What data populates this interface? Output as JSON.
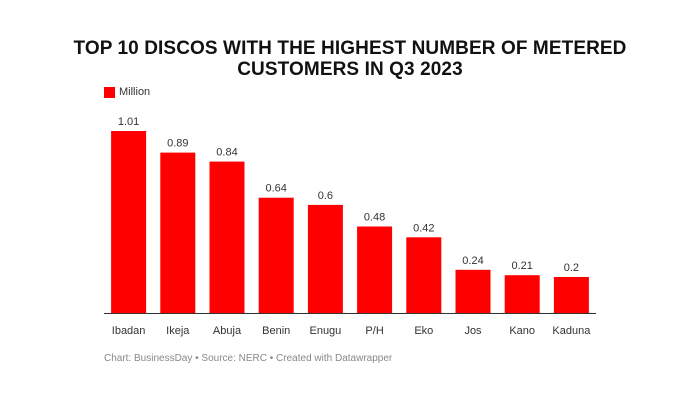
{
  "chart_data": {
    "type": "bar",
    "title_line1": "TOP 10 DISCOS WITH THE HIGHEST NUMBER OF METERED",
    "title_line2": "CUSTOMERS IN Q3 2023",
    "legend": {
      "label": "Million",
      "color": "#ff0000"
    },
    "categories": [
      "Ibadan",
      "Ikeja",
      "Abuja",
      "Benin",
      "Enugu",
      "P/H",
      "Eko",
      "Jos",
      "Kano",
      "Kaduna"
    ],
    "values": [
      1.01,
      0.89,
      0.84,
      0.64,
      0.6,
      0.48,
      0.42,
      0.24,
      0.21,
      0.2
    ],
    "value_labels": [
      "1.01",
      "0.89",
      "0.84",
      "0.64",
      "0.6",
      "0.48",
      "0.42",
      "0.24",
      "0.21",
      "0.2"
    ],
    "xlabel": "",
    "ylabel": "",
    "ylim": [
      0,
      1.01
    ],
    "grid": false,
    "bar_color": "#ff0000",
    "source": "Chart: BusinessDay • Source: NERC • Created with Datawrapper"
  }
}
